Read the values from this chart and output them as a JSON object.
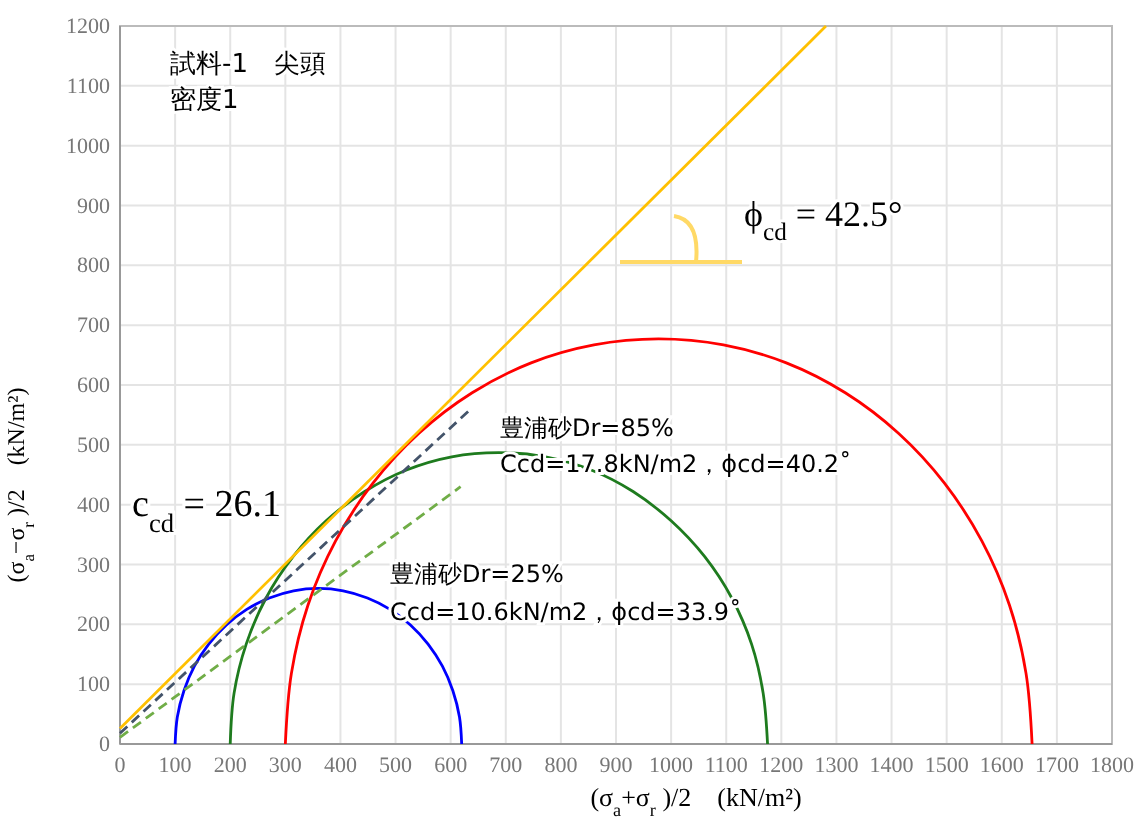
{
  "chart_data": {
    "type": "line",
    "xlabel": "(σ$_{a}$+σ$_{r}$ )/2　(kN/m²)",
    "ylabel": "(σ$_{a}$−σ$_{r}$ )/2　(kN/m²)",
    "xlim": [
      0,
      1800
    ],
    "xticks": [
      0,
      100,
      200,
      300,
      400,
      500,
      600,
      700,
      800,
      900,
      1000,
      1100,
      1200,
      1300,
      1400,
      1500,
      1600,
      1700,
      1800
    ],
    "ylim": [
      0,
      1200
    ],
    "yticks": [
      0,
      100,
      200,
      300,
      400,
      500,
      600,
      700,
      800,
      900,
      1000,
      1100,
      1200
    ],
    "grid": true,
    "marker": "none",
    "annotations": [
      "試料-1　尖頭",
      "密度1",
      "ϕ$_{cd}$ = 42.5°",
      "c$_{cd}$ = 26.1",
      "豊浦砂Dr=85%",
      "Ccd=17.8kN/m2，ϕcd=40.2˚",
      "豊浦砂Dr=25%",
      "Ccd=10.6kN/m2，ϕcd=33.9˚"
    ],
    "series": [
      {
        "color": "#0000ff",
        "x": [
          100,
          104,
          116,
          135,
          161,
          193,
          230,
          271,
          315,
          360,
          405,
          449,
          490,
          527,
          559,
          585,
          604,
          616,
          620
        ],
        "values": [
          0,
          45,
          89,
          130,
          167,
          199,
          225,
          244,
          256,
          260,
          256,
          244,
          225,
          199,
          167,
          130,
          89,
          45,
          0
        ]
      },
      {
        "color": "#1e7b1e",
        "x": [
          200,
          207,
          229,
          265,
          314,
          374,
          444,
          520,
          602,
          687,
          772,
          855,
          931,
          1000,
          1061,
          1110,
          1146,
          1167,
          1175
        ],
        "values": [
          0,
          85,
          167,
          244,
          313,
          373,
          422,
          458,
          480,
          487,
          480,
          458,
          422,
          373,
          313,
          244,
          167,
          85,
          0
        ]
      },
      {
        "color": "#ff0000",
        "x": [
          300,
          311,
          341,
          391,
          459,
          542,
          639,
          746,
          860,
          977,
          1095,
          1209,
          1316,
          1413,
          1496,
          1564,
          1614,
          1644,
          1655
        ],
        "values": [
          0,
          118,
          232,
          339,
          436,
          519,
          587,
          637,
          667,
          677,
          667,
          637,
          587,
          519,
          436,
          339,
          232,
          118,
          0
        ]
      },
      {
        "color": "#ffc000",
        "x": [
          0,
          1281
        ],
        "values": [
          26,
          1200
        ]
      },
      {
        "color": "#44546a",
        "line_style": "dashed",
        "x": [
          0,
          632
        ],
        "values": [
          18,
          556
        ]
      },
      {
        "color": "#70ad47",
        "line_style": "dashed",
        "x": [
          0,
          618
        ],
        "values": [
          11,
          430
        ]
      }
    ]
  }
}
